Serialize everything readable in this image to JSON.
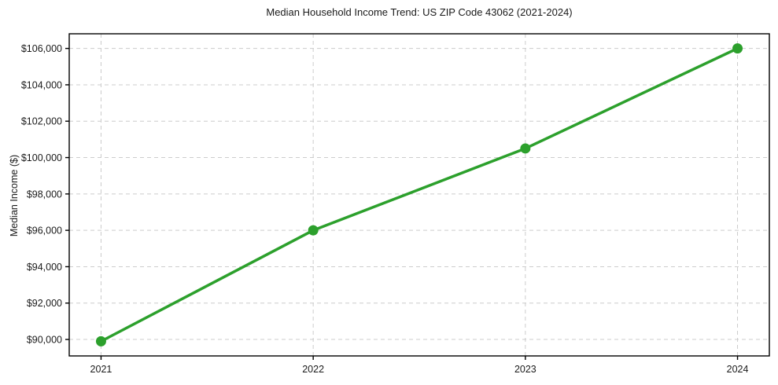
{
  "chart_data": {
    "type": "line",
    "title": "Median Household Income Trend: US ZIP Code 43062 (2021-2024)",
    "xlabel": "",
    "ylabel": "Median Income ($)",
    "x": [
      2021,
      2022,
      2023,
      2024
    ],
    "values": [
      89900,
      96000,
      100500,
      106000
    ],
    "xticks": {
      "values": [
        2021,
        2022,
        2023,
        2024
      ],
      "labels": [
        "2021",
        "2022",
        "2023",
        "2024"
      ]
    },
    "yticks": {
      "values": [
        90000,
        92000,
        94000,
        96000,
        98000,
        100000,
        102000,
        104000,
        106000
      ],
      "labels": [
        "$90,000",
        "$92,000",
        "$94,000",
        "$96,000",
        "$98,000",
        "$100,000",
        "$102,000",
        "$104,000",
        "$106,000"
      ]
    },
    "xlim": [
      2020.85,
      2024.15
    ],
    "ylim": [
      89095,
      106805
    ],
    "grid": true,
    "grid_style": "dashed",
    "legend": false,
    "line_color": "#2ca02c",
    "marker": "circle",
    "marker_color": "#2ca02c",
    "grid_color": "#cccccc",
    "axis_color": "#000000",
    "background_color": "#ffffff"
  }
}
